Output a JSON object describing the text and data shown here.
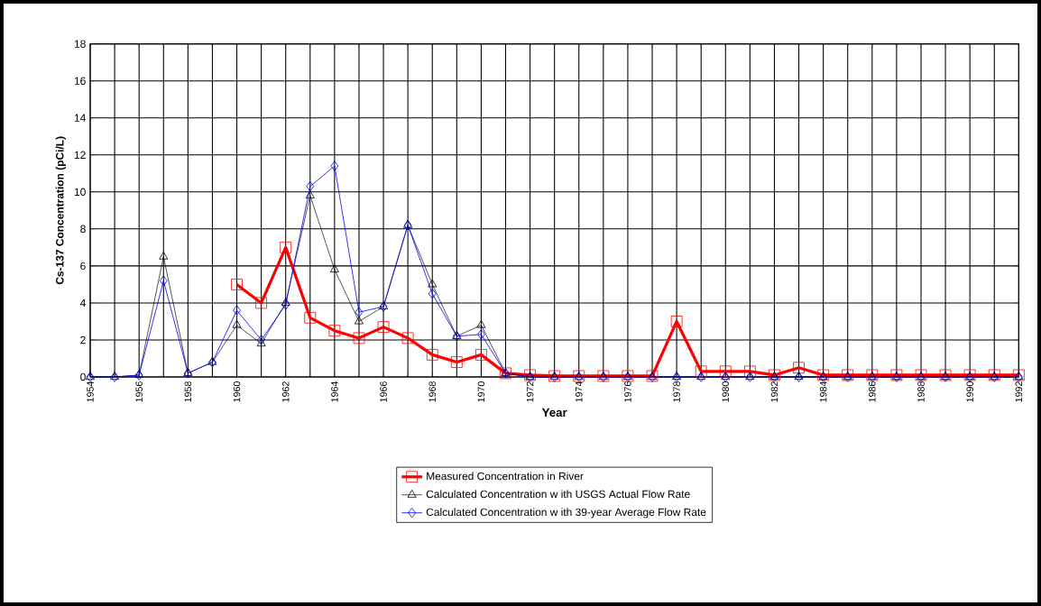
{
  "chart_data": {
    "type": "line",
    "xlabel": "Year",
    "ylabel": "Cs-137 Concentration  (pCi/L)",
    "categories": [
      "1954",
      null,
      "1956",
      null,
      "1958",
      null,
      "1960",
      null,
      "1962",
      null,
      "1964",
      null,
      "1966",
      null,
      "1968",
      null,
      "1970",
      null,
      "1972",
      null,
      "1974",
      null,
      "1976",
      null,
      "1978",
      null,
      "1980",
      null,
      "1982",
      null,
      "1984",
      null,
      "1986",
      null,
      "1988",
      null,
      "1990",
      null,
      "1992"
    ],
    "ylim": [
      0,
      18
    ],
    "yticks": [
      0,
      2,
      4,
      6,
      8,
      10,
      12,
      14,
      16,
      18
    ],
    "grid": true,
    "legend": "bottom",
    "series": [
      {
        "name": "Measured Concentration in River",
        "color": "#ff0000",
        "marker": "square",
        "values": [
          null,
          null,
          null,
          null,
          null,
          null,
          5.0,
          4.0,
          7.0,
          3.2,
          2.5,
          2.1,
          2.7,
          2.1,
          1.2,
          0.8,
          1.2,
          0.2,
          0.1,
          0.05,
          0.05,
          0.05,
          0.05,
          0.05,
          3.0,
          0.3,
          0.3,
          0.3,
          0.1,
          0.5,
          0.1,
          0.1,
          0.1,
          0.1,
          0.1,
          0.1,
          0.1,
          0.1,
          0.1
        ]
      },
      {
        "name": "Calculated Concentration w ith USGS Actual Flow Rate",
        "color": "#000000",
        "marker": "triangle",
        "values": [
          0,
          0,
          0.1,
          6.5,
          0.2,
          0.8,
          2.8,
          1.8,
          4.0,
          9.8,
          5.8,
          3.0,
          3.8,
          8.2,
          5.0,
          2.2,
          2.8,
          0.2,
          0,
          0,
          0,
          0,
          0,
          0,
          0,
          0,
          0,
          0,
          0,
          0,
          0,
          0,
          0,
          0,
          0,
          0,
          0,
          0,
          0
        ]
      },
      {
        "name": "Calculated Concentration w ith 39-year Average Flow Rate",
        "color": "#0000ff",
        "marker": "diamond",
        "values": [
          0,
          0,
          0.1,
          5.2,
          0.2,
          0.8,
          3.6,
          2.0,
          3.9,
          10.3,
          11.4,
          3.5,
          3.8,
          8.2,
          4.5,
          2.2,
          2.3,
          0.2,
          0,
          0,
          0,
          0,
          0,
          0,
          0,
          0,
          0,
          0,
          0,
          0,
          0,
          0,
          0,
          0,
          0,
          0,
          0,
          0,
          0
        ]
      }
    ]
  }
}
